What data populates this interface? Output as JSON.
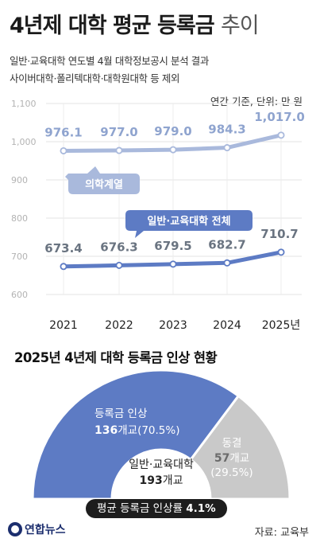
{
  "header": {
    "title_bold": "4년제 대학 평균 등록금",
    "title_light": "추이",
    "subtitle_line1": "일반·교육대학 연도별 4월 대학정보공시 분석 결과",
    "subtitle_line2": "사이버대학·폴리텍대학·대학원대학 등 제외",
    "unit": "연간 기준, 단위: 만 원"
  },
  "chart_data": {
    "type": "line",
    "x": [
      "2021",
      "2022",
      "2023",
      "2024",
      "2025년"
    ],
    "y_ticks": [
      "1,100",
      "1,000",
      "900",
      "800",
      "700",
      "600"
    ],
    "ylim": [
      600,
      1100
    ],
    "series": [
      {
        "name": "의학계열",
        "values": [
          976.1,
          977.0,
          979.0,
          984.3,
          1017.0
        ],
        "labels": [
          "976.1",
          "977.0",
          "979.0",
          "984.3",
          "1,017.0"
        ],
        "color": "#a9b9dc"
      },
      {
        "name": "일반·교육대학 전체",
        "values": [
          673.4,
          676.3,
          679.5,
          682.7,
          710.7
        ],
        "labels": [
          "673.4",
          "676.3",
          "679.5",
          "682.7",
          "710.7"
        ],
        "color": "#5d7bc4"
      }
    ]
  },
  "pie": {
    "title": "2025년 4년제 대학 등록금 인상 현황",
    "total_line1": "일반·교육대학",
    "total_line2_num": "193",
    "total_line2_unit": "개교",
    "segments": [
      {
        "name": "등록금 인상",
        "count_num": "136",
        "count_unit": "개교(70.5%)",
        "share": 70.5,
        "color": "#5d7bc4"
      },
      {
        "name": "동결",
        "count_num": "57",
        "count_unit": "개교",
        "pct": "(29.5%)",
        "share": 29.5,
        "color": "#c9c9c9"
      }
    ],
    "rate_label": "평균 등록금 인상률",
    "rate_value": "4.1%"
  },
  "footer": {
    "logo": "연합뉴스",
    "source": "자료: 교육부"
  }
}
